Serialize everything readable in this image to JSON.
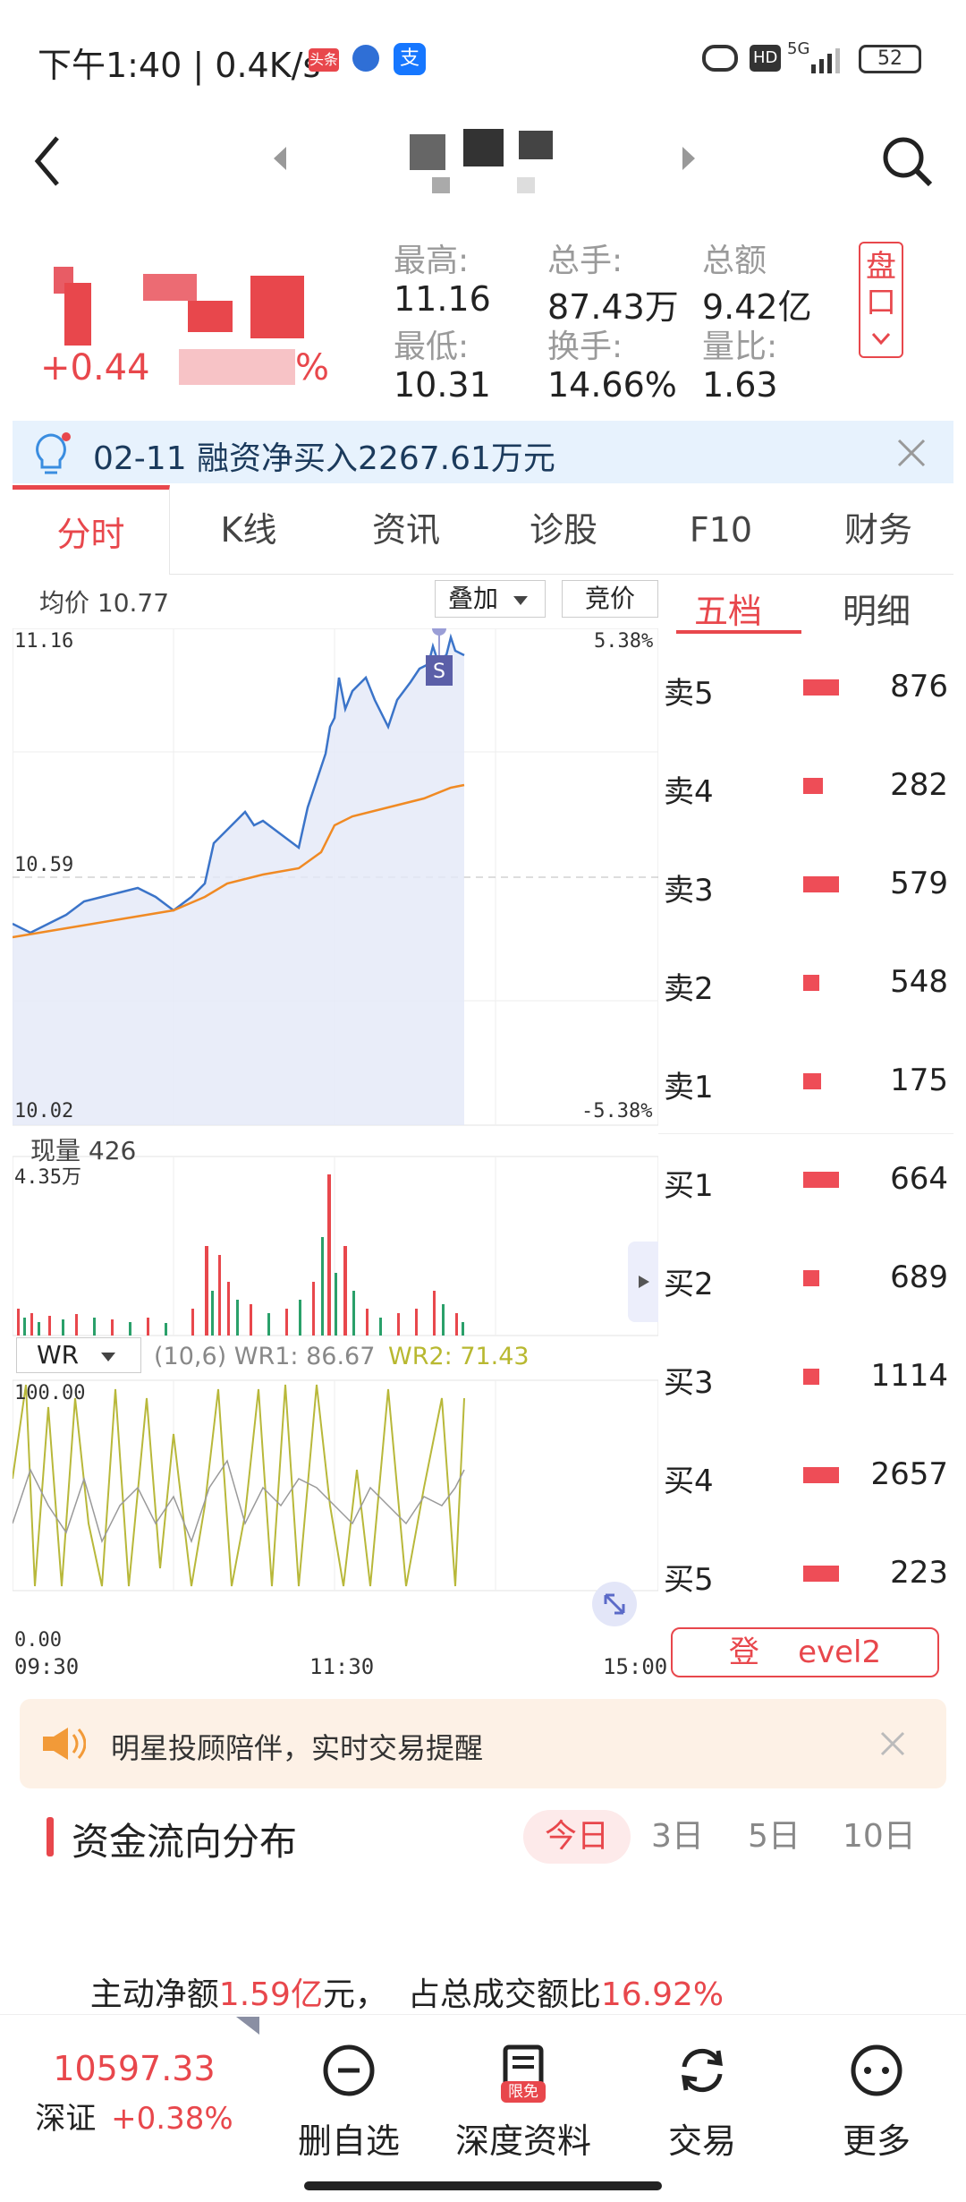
{
  "status_bar": {
    "time": "下午1:40 | 0.4K/s",
    "battery": "52",
    "network": "5G",
    "hd": "HD",
    "badge_toutiao": "头条"
  },
  "nav": {
    "back_icon": "chevron-left-icon",
    "prev_icon": "triangle-left-icon",
    "next_icon": "triangle-right-icon",
    "search_icon": "search-icon"
  },
  "quote": {
    "change": "+0.44",
    "change_pct": "%",
    "high_label": "最高:",
    "high": "11.16",
    "low_label": "最低:",
    "low": "10.31",
    "vol_label": "总手:",
    "vol": "87.43万",
    "turnover_label": "换手:",
    "turnover": "14.66%",
    "amount_label": "总额",
    "amount": "9.42亿",
    "ratio_label": "量比:",
    "ratio": "1.63",
    "pankou_label": "盘口"
  },
  "notice": {
    "date": "02-11",
    "text": " 融资净买入2267.61万元"
  },
  "tabs": [
    "分时",
    "K线",
    "资讯",
    "诊股",
    "F10",
    "财务"
  ],
  "chart": {
    "avg_label": "均价 10.77",
    "overlay_btn": "叠加",
    "auction_btn": "竞价",
    "price_high": "11.16",
    "price_mid": "10.59",
    "price_low": "10.02",
    "pct_high": "5.38%",
    "pct_low": "-5.38%",
    "marker": "S",
    "volume_label": "现量 426",
    "volume_max": "4.35万",
    "indicator": "WR",
    "wr_params": "(10,6) WR1: 86.67",
    "wr2": "WR2: 71.43",
    "wr_top": "100.00",
    "wr_bottom": "0.00",
    "time_start": "09:30",
    "time_mid": "11:30",
    "time_end": "15:00"
  },
  "book": {
    "tab_active": "五档",
    "tab_detail": "明细",
    "rows": [
      {
        "label": "卖5",
        "qty": "876",
        "bar": 0.45
      },
      {
        "label": "卖4",
        "qty": "282",
        "bar": 0.2
      },
      {
        "label": "卖3",
        "qty": "579",
        "bar": 0.45
      },
      {
        "label": "卖2",
        "qty": "548",
        "bar": 0.25
      },
      {
        "label": "卖1",
        "qty": "175",
        "bar": 0.2
      },
      {
        "label": "买1",
        "qty": "664",
        "bar": 0.45
      },
      {
        "label": "买2",
        "qty": "689",
        "bar": 0.2
      },
      {
        "label": "买3",
        "qty": "1114",
        "bar": 0.2
      },
      {
        "label": "买4",
        "qty": "2657",
        "bar": 0.45
      },
      {
        "label": "买5",
        "qty": "223",
        "bar": 0.45
      }
    ],
    "level2_btn": "登    evel2"
  },
  "alert": {
    "text": "明星投顾陪伴，实时交易提醒"
  },
  "flow": {
    "title": "资金流向分布",
    "periods": [
      "今日",
      "3日",
      "5日",
      "10日"
    ],
    "line_prefix": "主动净额",
    "net_amount": "1.59亿",
    "line_mid": "元，  占总成交额比",
    "ratio": "16.92%"
  },
  "bottom": {
    "index_value": "10597.33",
    "index_name": "深证",
    "index_change": "+0.38%",
    "items": [
      {
        "label": "删自选",
        "icon": "minus-circle-icon"
      },
      {
        "label": "深度资料",
        "icon": "document-icon",
        "badge": "限免"
      },
      {
        "label": "交易",
        "icon": "refresh-icon"
      },
      {
        "label": "更多",
        "icon": "more-icon"
      }
    ]
  }
}
